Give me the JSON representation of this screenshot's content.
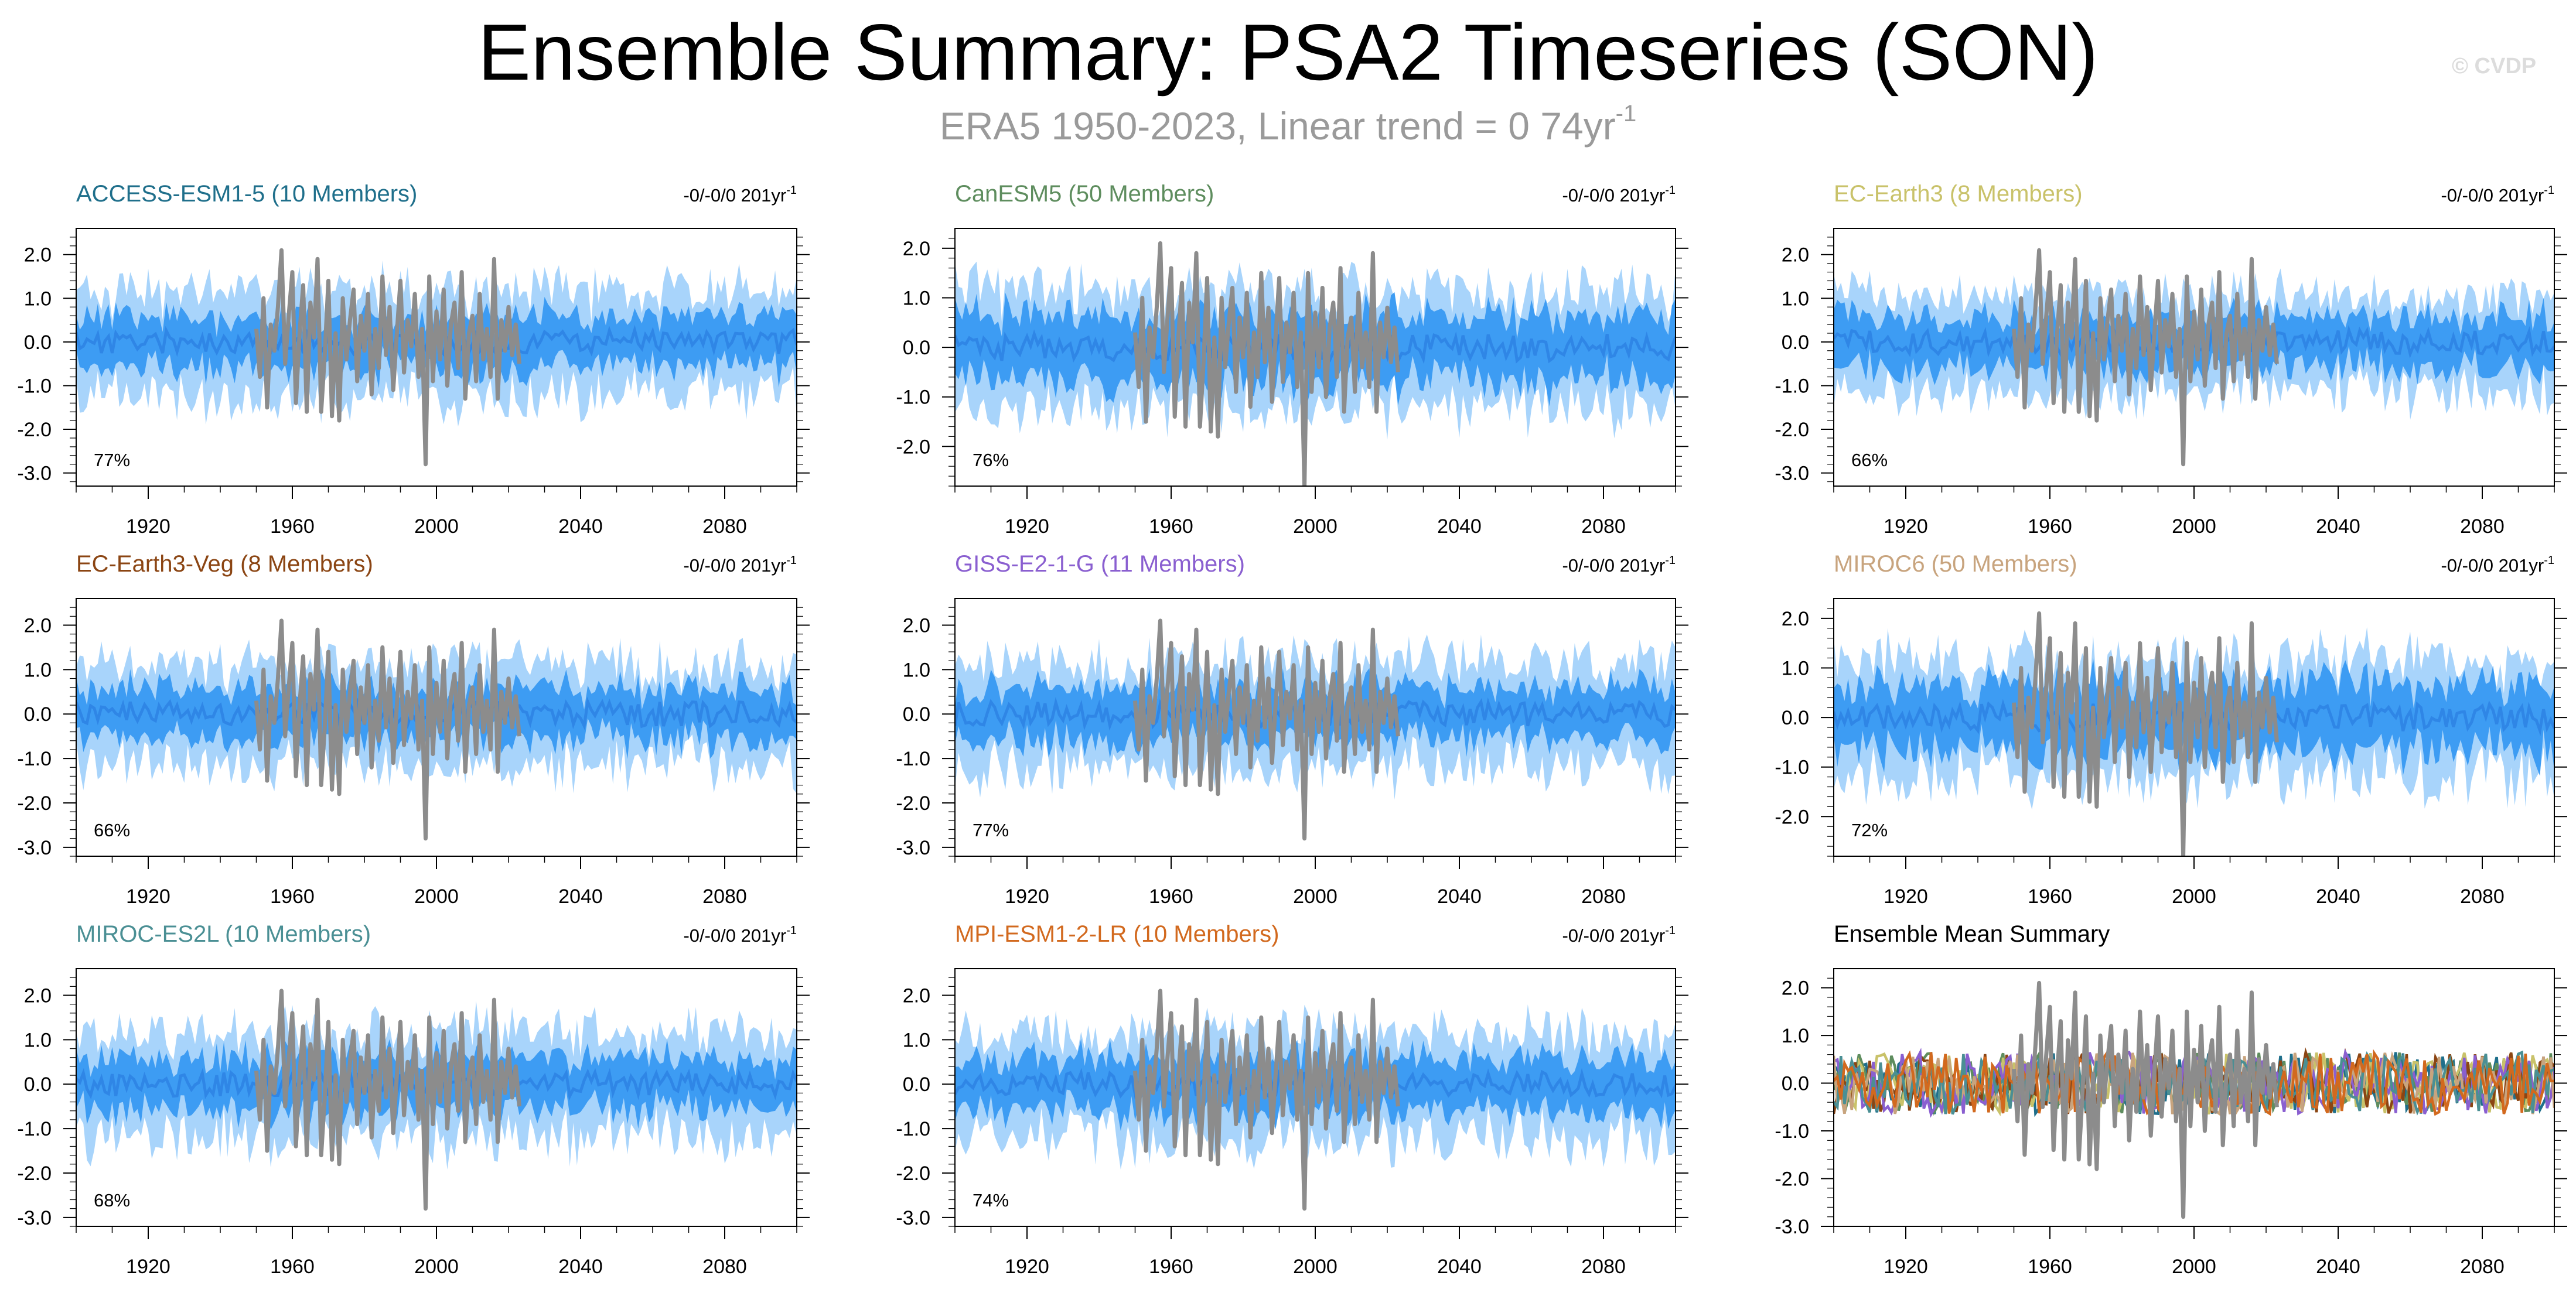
{
  "page": {
    "title": "Ensemble Summary: PSA2 Timeseries (SON)",
    "subtitle_main": "ERA5 1950-2023, Linear trend = 0 74yr",
    "subtitle_sup": "-1",
    "watermark": "© CVDP"
  },
  "colors": {
    "outer_band": "#a8d4fb",
    "inner_band": "#3d9cf3",
    "mean_line": "#2f86e6",
    "observed": "#8c8c8c"
  },
  "chart_data": [
    {
      "type": "area",
      "title": "ACCESS-ESM1-5 (10 Members)",
      "title_color": "#1f6f8b",
      "trend": "-0/-0/0 201yr",
      "trend_sup": "-1",
      "percent": "77%",
      "xlim": [
        1900,
        2100
      ],
      "ylim": [
        -3.3,
        2.6
      ],
      "xticks": [
        1920,
        1960,
        2000,
        2040,
        2080
      ],
      "yticks": [
        2.0,
        1.0,
        0.0,
        -1.0,
        -2.0,
        -3.0
      ],
      "xlabel": "",
      "ylabel": "",
      "seed": 11,
      "outer": 1.25,
      "inner": 0.62
    },
    {
      "type": "area",
      "title": "CanESM5 (50 Members)",
      "title_color": "#5e8d5e",
      "trend": "-0/-0/0 201yr",
      "trend_sup": "-1",
      "percent": "76%",
      "xlim": [
        1900,
        2100
      ],
      "ylim": [
        -2.8,
        2.4
      ],
      "xticks": [
        1920,
        1960,
        2000,
        2040,
        2080
      ],
      "yticks": [
        2.0,
        1.0,
        0.0,
        -1.0,
        -2.0
      ],
      "xlabel": "",
      "ylabel": "",
      "seed": 23,
      "outer": 1.25,
      "inner": 0.72
    },
    {
      "type": "area",
      "title": "EC-Earth3 (8 Members)",
      "title_color": "#c9c26a",
      "trend": "-0/-0/0 201yr",
      "trend_sup": "-1",
      "percent": "66%",
      "xlim": [
        1900,
        2100
      ],
      "ylim": [
        -3.3,
        2.6
      ],
      "xticks": [
        1920,
        1960,
        2000,
        2040,
        2080
      ],
      "yticks": [
        2.0,
        1.0,
        0.0,
        -1.0,
        -2.0,
        -3.0
      ],
      "xlabel": "",
      "ylabel": "",
      "seed": 37,
      "outer": 1.15,
      "inner": 0.62
    },
    {
      "type": "area",
      "title": "EC-Earth3-Veg (8 Members)",
      "title_color": "#8b4513",
      "trend": "-0/-0/0 201yr",
      "trend_sup": "-1",
      "percent": "66%",
      "xlim": [
        1900,
        2100
      ],
      "ylim": [
        -3.2,
        2.6
      ],
      "xticks": [
        1920,
        1960,
        2000,
        2040,
        2080
      ],
      "yticks": [
        2.0,
        1.0,
        0.0,
        -1.0,
        -2.0,
        -3.0
      ],
      "xlabel": "",
      "ylabel": "",
      "seed": 41,
      "outer": 1.2,
      "inner": 0.6
    },
    {
      "type": "area",
      "title": "GISS-E2-1-G (11 Members)",
      "title_color": "#8a5fd0",
      "trend": "-0/-0/0 201yr",
      "trend_sup": "-1",
      "percent": "77%",
      "xlim": [
        1900,
        2100
      ],
      "ylim": [
        -3.2,
        2.6
      ],
      "xticks": [
        1920,
        1960,
        2000,
        2040,
        2080
      ],
      "yticks": [
        2.0,
        1.0,
        0.0,
        -1.0,
        -2.0,
        -3.0
      ],
      "xlabel": "",
      "ylabel": "",
      "seed": 53,
      "outer": 1.25,
      "inner": 0.62
    },
    {
      "type": "area",
      "title": "MIROC6 (50 Members)",
      "title_color": "#c8a47e",
      "trend": "-0/-0/0 201yr",
      "trend_sup": "-1",
      "percent": "72%",
      "xlim": [
        1900,
        2100
      ],
      "ylim": [
        -2.8,
        2.4
      ],
      "xticks": [
        1920,
        1960,
        2000,
        2040,
        2080
      ],
      "yticks": [
        2.0,
        1.0,
        0.0,
        -1.0,
        -2.0
      ],
      "xlabel": "",
      "ylabel": "",
      "seed": 67,
      "outer": 1.25,
      "inner": 0.72
    },
    {
      "type": "area",
      "title": "MIROC-ES2L (10 Members)",
      "title_color": "#4a8f94",
      "trend": "-0/-0/0 201yr",
      "trend_sup": "-1",
      "percent": "68%",
      "xlim": [
        1900,
        2100
      ],
      "ylim": [
        -3.2,
        2.6
      ],
      "xticks": [
        1920,
        1960,
        2000,
        2040,
        2080
      ],
      "yticks": [
        2.0,
        1.0,
        0.0,
        -1.0,
        -2.0,
        -3.0
      ],
      "xlabel": "",
      "ylabel": "",
      "seed": 79,
      "outer": 1.25,
      "inner": 0.62
    },
    {
      "type": "area",
      "title": "MPI-ESM1-2-LR (10 Members)",
      "title_color": "#d2691e",
      "trend": "-0/-0/0 201yr",
      "trend_sup": "-1",
      "percent": "74%",
      "xlim": [
        1900,
        2100
      ],
      "ylim": [
        -3.2,
        2.6
      ],
      "xticks": [
        1920,
        1960,
        2000,
        2040,
        2080
      ],
      "yticks": [
        2.0,
        1.0,
        0.0,
        -1.0,
        -2.0,
        -3.0
      ],
      "xlabel": "",
      "ylabel": "",
      "seed": 83,
      "outer": 1.25,
      "inner": 0.62
    },
    {
      "type": "line",
      "title": "Ensemble Mean Summary",
      "title_color": "#000000",
      "trend": "",
      "trend_sup": "",
      "percent": "",
      "xlim": [
        1900,
        2100
      ],
      "ylim": [
        -3.0,
        2.4
      ],
      "xticks": [
        1920,
        1960,
        2000,
        2040,
        2080
      ],
      "yticks": [
        2.0,
        1.0,
        0.0,
        -1.0,
        -2.0,
        -3.0
      ],
      "xlabel": "",
      "ylabel": "",
      "seed": 97,
      "series_colors": [
        "#1f6f8b",
        "#5e8d5e",
        "#c9c26a",
        "#8b4513",
        "#8a5fd0",
        "#c8a47e",
        "#4a8f94",
        "#d2691e"
      ]
    }
  ],
  "observed_series": {
    "name": "ERA5",
    "years": [
      1950,
      1951,
      1952,
      1953,
      1954,
      1955,
      1956,
      1957,
      1958,
      1959,
      1960,
      1961,
      1962,
      1963,
      1964,
      1965,
      1966,
      1967,
      1968,
      1969,
      1970,
      1971,
      1972,
      1973,
      1974,
      1975,
      1976,
      1977,
      1978,
      1979,
      1980,
      1981,
      1982,
      1983,
      1984,
      1985,
      1986,
      1987,
      1988,
      1989,
      1990,
      1991,
      1992,
      1993,
      1994,
      1995,
      1996,
      1997,
      1998,
      1999,
      2000,
      2001,
      2002,
      2003,
      2004,
      2005,
      2006,
      2007,
      2008,
      2009,
      2010,
      2011,
      2012,
      2013,
      2014,
      2015,
      2016,
      2017,
      2018,
      2019,
      2020,
      2021,
      2022,
      2023
    ],
    "values": [
      0.3,
      -0.8,
      1.0,
      -1.5,
      0.4,
      -0.2,
      0.8,
      2.1,
      -0.5,
      0.6,
      1.6,
      -1.4,
      0.2,
      1.3,
      -1.6,
      0.9,
      0.1,
      1.9,
      -1.6,
      -0.3,
      1.4,
      -1.7,
      0.2,
      -1.8,
      1.0,
      -0.4,
      0.5,
      1.2,
      -0.9,
      0.6,
      -0.2,
      1.1,
      -1.2,
      0.3,
      -0.6,
      1.5,
      -0.3,
      0.8,
      -1.1,
      0.2,
      1.4,
      -0.7,
      0.5,
      -0.1,
      1.1,
      -0.8,
      0.3,
      -2.8,
      1.5,
      -0.9,
      0.7,
      -0.4,
      1.2,
      -1.0,
      0.4,
      0.9,
      -0.6,
      1.6,
      -1.3,
      0.2,
      0.6,
      -0.9,
      1.1,
      -0.4,
      0.3,
      -0.8,
      1.9,
      -1.3,
      0.5,
      -0.2,
      0.8,
      -0.3,
      0.4,
      -0.5
    ]
  }
}
